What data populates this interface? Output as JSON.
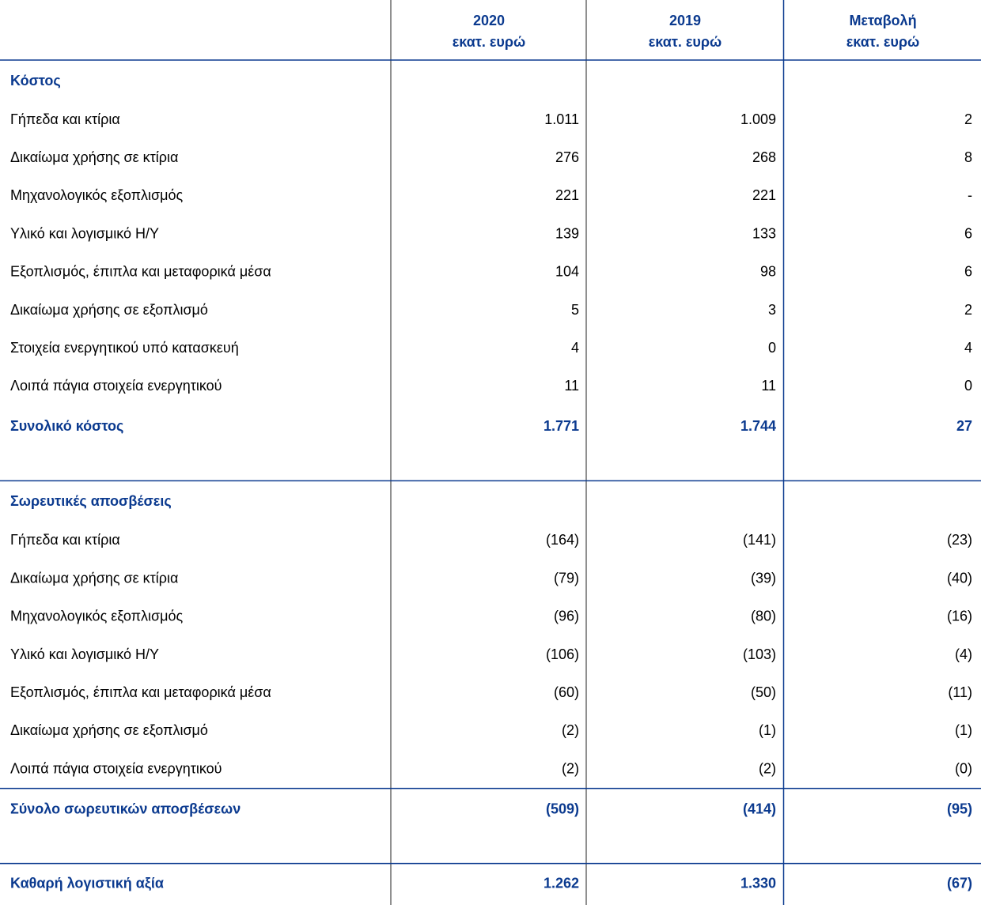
{
  "table": {
    "columns": [
      {
        "year": "2020",
        "unit": "εκατ. ευρώ"
      },
      {
        "year": "2019",
        "unit": "εκατ. ευρώ"
      },
      {
        "year": "Μεταβολή",
        "unit": "εκατ. ευρώ"
      }
    ],
    "sections": [
      {
        "title": "Κόστος",
        "rows": [
          [
            "Γήπεδα και κτίρια",
            "1.011",
            "1.009",
            "2"
          ],
          [
            "Δικαίωμα χρήσης σε κτίρια",
            "276",
            "268",
            "8"
          ],
          [
            "Μηχανολογικός εξοπλισμός",
            "221",
            "221",
            "-"
          ],
          [
            "Υλικό και λογισμικό Η/Υ",
            "139",
            "133",
            "6"
          ],
          [
            "Εξοπλισμός, έπιπλα και μεταφορικά μέσα",
            "104",
            "98",
            "6"
          ],
          [
            "Δικαίωμα χρήσης σε εξοπλισμό",
            "5",
            "3",
            "2"
          ],
          [
            "Στοιχεία ενεργητικού υπό κατασκευή",
            "4",
            "0",
            "4"
          ],
          [
            "Λοιπά πάγια στοιχεία ενεργητικού",
            "11",
            "11",
            "0"
          ]
        ],
        "total": [
          "Συνολικό κόστος",
          "1.771",
          "1.744",
          "27"
        ]
      },
      {
        "title": "Σωρευτικές αποσβέσεις",
        "rows": [
          [
            "Γήπεδα και κτίρια",
            "(164)",
            "(141)",
            "(23)"
          ],
          [
            "Δικαίωμα χρήσης σε κτίρια",
            "(79)",
            "(39)",
            "(40)"
          ],
          [
            "Μηχανολογικός εξοπλισμός",
            "(96)",
            "(80)",
            "(16)"
          ],
          [
            "Υλικό και λογισμικό Η/Υ",
            "(106)",
            "(103)",
            "(4)"
          ],
          [
            "Εξοπλισμός, έπιπλα και μεταφορικά μέσα",
            "(60)",
            "(50)",
            "(11)"
          ],
          [
            "Δικαίωμα χρήσης σε εξοπλισμό",
            "(2)",
            "(1)",
            "(1)"
          ],
          [
            "Λοιπά πάγια στοιχεία ενεργητικού",
            "(2)",
            "(2)",
            "(0)"
          ]
        ],
        "total": [
          "Σύνολο σωρευτικών αποσβέσεων",
          "(509)",
          "(414)",
          "(95)"
        ]
      }
    ],
    "net": [
      "Καθαρή λογιστική αξία",
      "1.262",
      "1.330",
      "(67)"
    ]
  }
}
